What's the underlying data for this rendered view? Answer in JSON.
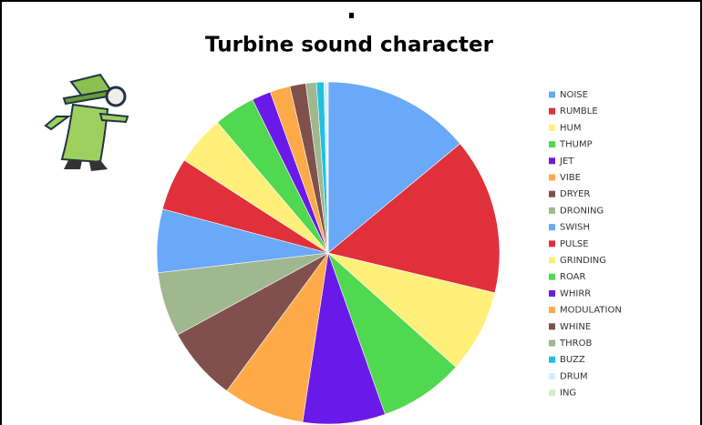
{
  "chart_data": {
    "type": "pie",
    "title": "Turbine sound character",
    "categories": [
      "NOISE",
      "RUMBLE",
      "HUM",
      "THUMP",
      "JET",
      "VIBE",
      "DRYER",
      "DRONING",
      "SWISH",
      "PULSE",
      "GRINDING",
      "ROAR",
      "WHIRR",
      "MODULATION",
      "WHINE",
      "THROB",
      "BUZZ",
      "DRUM",
      "ING"
    ],
    "values": [
      14,
      14.8,
      7.9,
      8,
      7.8,
      7.7,
      7,
      6.1,
      6,
      5,
      4.7,
      3.9,
      1.8,
      1.9,
      1.5,
      1,
      0.7,
      0.3,
      0.1
    ],
    "colors": [
      "#6aa8f8",
      "#e0303a",
      "#fff07a",
      "#50d850",
      "#6a1ae8",
      "#ffaa48",
      "#80504c",
      "#a0b890",
      "#6aa8f8",
      "#e0303a",
      "#fff07a",
      "#50d850",
      "#6a1ae8",
      "#ffaa48",
      "#80504c",
      "#a0b890",
      "#20c0e0",
      "#d0f0f8",
      "#d0f0c0"
    ],
    "legend": "right"
  }
}
